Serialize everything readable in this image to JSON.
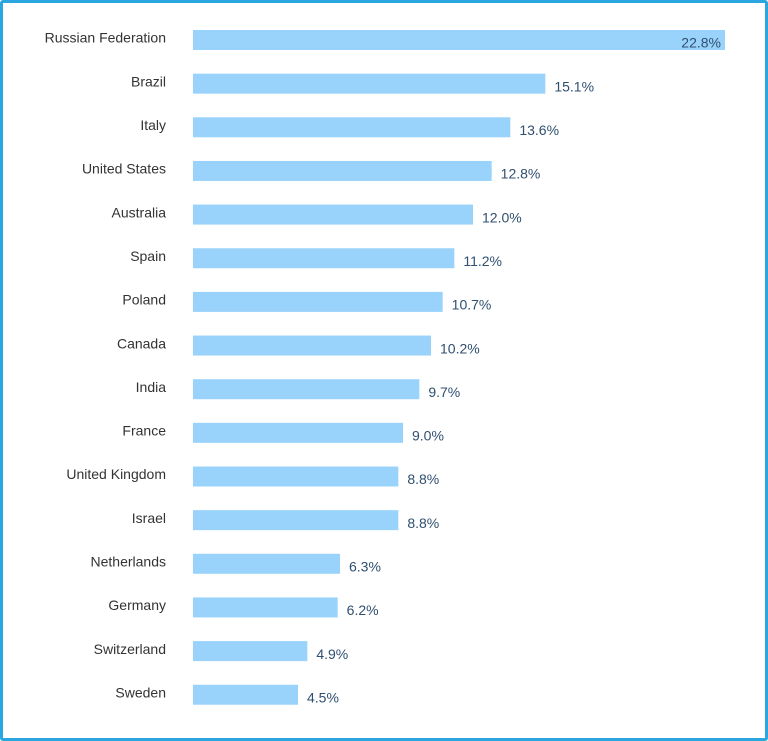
{
  "chart_data": {
    "type": "bar",
    "orientation": "horizontal",
    "categories": [
      "Russian Federation",
      "Brazil",
      "Italy",
      "United States",
      "Australia",
      "Spain",
      "Poland",
      "Canada",
      "India",
      "France",
      "United Kingdom",
      "Israel",
      "Netherlands",
      "Germany",
      "Switzerland",
      "Sweden"
    ],
    "values": [
      22.8,
      15.1,
      13.6,
      12.8,
      12.0,
      11.2,
      10.7,
      10.2,
      9.7,
      9.0,
      8.8,
      8.8,
      6.3,
      6.2,
      4.9,
      4.5
    ],
    "value_labels": [
      "22.8%",
      "15.1%",
      "13.6%",
      "12.8%",
      "12.0%",
      "11.2%",
      "10.7%",
      "10.2%",
      "9.7%",
      "9.0%",
      "8.8%",
      "8.8%",
      "6.3%",
      "6.2%",
      "4.9%",
      "4.5%"
    ],
    "title": "",
    "xlabel": "",
    "ylabel": "",
    "xlim": [
      0,
      22.8
    ],
    "grid": false,
    "legend": "none",
    "colors": {
      "bar": "#99d3fb",
      "frame": "#2aa7e1",
      "label": "#333333",
      "value_label": "#2f4f6f"
    }
  }
}
